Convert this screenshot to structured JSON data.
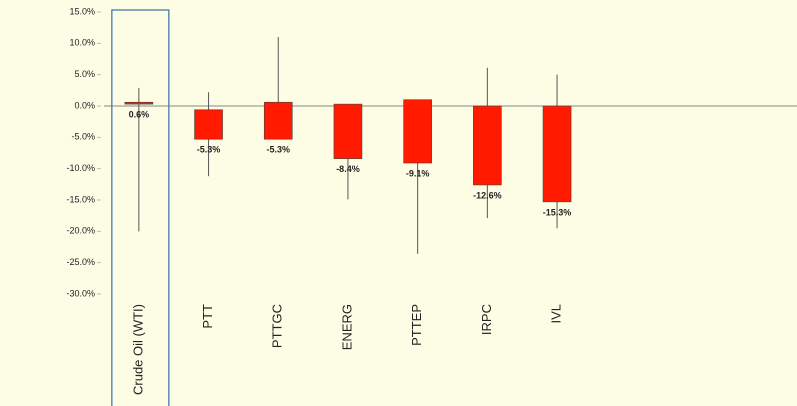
{
  "chart_data": {
    "type": "candlestick",
    "categories": [
      "Crude Oil (WTI)",
      "PTT",
      "PTTGC",
      "ENERG",
      "PTTEP",
      "IRPC",
      "IVL"
    ],
    "series": [
      {
        "color": "#ff1a00",
        "open": [
          0.3,
          -0.6,
          0.6,
          0.3,
          1.0,
          0.0,
          0.0
        ],
        "high": [
          2.9,
          2.2,
          11.0,
          0.3,
          1.0,
          6.1,
          5.0
        ],
        "low": [
          -20.0,
          -11.2,
          -5.3,
          -14.9,
          -23.6,
          -17.9,
          -19.5
        ],
        "values": [
          0.6,
          -5.3,
          -5.3,
          -8.4,
          -9.1,
          -12.6,
          -15.3
        ],
        "value_labels": [
          "0.6%",
          "-5.3%",
          "-5.3%",
          "-8.4%",
          "-9.1%",
          "-12.6%",
          "-15.3%"
        ]
      }
    ],
    "highlight": "Crude Oil (WTI)",
    "ylim": [
      -30,
      15
    ],
    "yticks": [
      {
        "value": 15,
        "label": "15.0%"
      },
      {
        "value": 10,
        "label": "10.0%"
      },
      {
        "value": 5,
        "label": "5.0%"
      },
      {
        "value": 0,
        "label": "0.0%"
      },
      {
        "value": -5,
        "label": "-5.0%"
      },
      {
        "value": -10,
        "label": "-10.0%"
      },
      {
        "value": -15,
        "label": "-15.0%"
      },
      {
        "value": -20,
        "label": "-20.0%"
      },
      {
        "value": -25,
        "label": "-25.0%"
      },
      {
        "value": -30,
        "label": "-30.0%"
      }
    ]
  }
}
